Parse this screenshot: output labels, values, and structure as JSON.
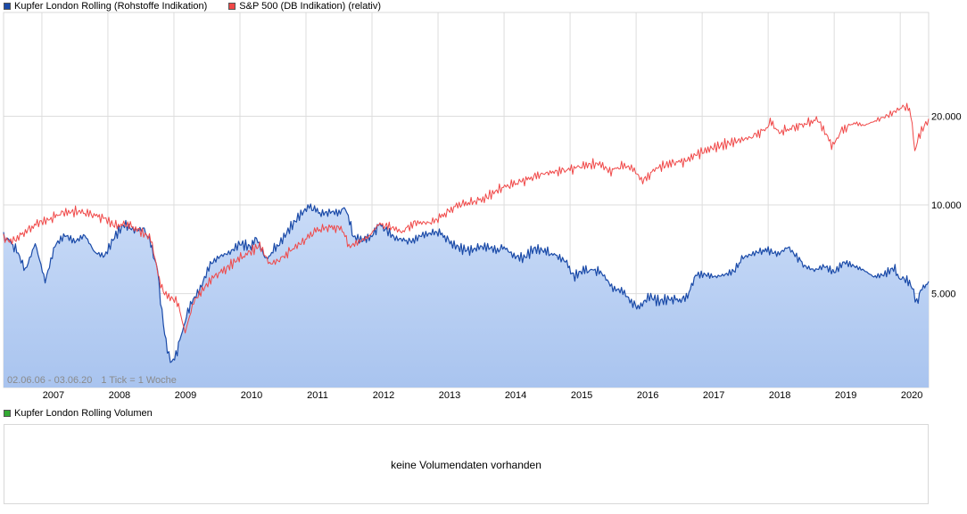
{
  "legend": {
    "series1": "Kupfer London Rolling (Rohstoffe Indikation)",
    "series2": "S&P 500 (DB Indikation) (relativ)"
  },
  "colors": {
    "series1_line": "#1a4aa8",
    "series1_fill_top": "#c9dbf7",
    "series1_fill_bottom": "#a9c4ef",
    "series2_line": "#f04848",
    "grid": "#dddddd",
    "volume_swatch": "#33aa33"
  },
  "range_label": "02.06.06 - 03.06.20",
  "tick_info": "1 Tick = 1 Woche",
  "volume": {
    "legend": "Kupfer London Rolling Volumen",
    "message": "keine Volumendaten vorhanden"
  },
  "chart_data": {
    "type": "line",
    "scale": "log",
    "ylim": [
      2400,
      45000
    ],
    "xlim": [
      2006.42,
      2020.43
    ],
    "y_ticks": [
      {
        "value": 5000,
        "label": "5.000"
      },
      {
        "value": 10000,
        "label": "10.000"
      },
      {
        "value": 20000,
        "label": "20.000"
      }
    ],
    "x_ticks": [
      "2007",
      "2008",
      "2009",
      "2010",
      "2011",
      "2012",
      "2013",
      "2014",
      "2015",
      "2016",
      "2017",
      "2018",
      "2019",
      "2020"
    ],
    "series": [
      {
        "name": "Kupfer London Rolling (Rohstoffe Indikation)",
        "area": true,
        "points": [
          [
            2006.42,
            7800
          ],
          [
            2006.5,
            7600
          ],
          [
            2006.62,
            7000
          ],
          [
            2006.75,
            6000
          ],
          [
            2006.9,
            7400
          ],
          [
            2007.05,
            5500
          ],
          [
            2007.2,
            7300
          ],
          [
            2007.35,
            7900
          ],
          [
            2007.5,
            7500
          ],
          [
            2007.65,
            7900
          ],
          [
            2007.8,
            6900
          ],
          [
            2007.95,
            6700
          ],
          [
            2008.1,
            7800
          ],
          [
            2008.25,
            8600
          ],
          [
            2008.4,
            8200
          ],
          [
            2008.55,
            8300
          ],
          [
            2008.65,
            7400
          ],
          [
            2008.75,
            6000
          ],
          [
            2008.82,
            4300
          ],
          [
            2008.9,
            3200
          ],
          [
            2008.97,
            2900
          ],
          [
            2009.05,
            3200
          ],
          [
            2009.15,
            3900
          ],
          [
            2009.25,
            4600
          ],
          [
            2009.4,
            5200
          ],
          [
            2009.55,
            6300
          ],
          [
            2009.7,
            6700
          ],
          [
            2009.85,
            6900
          ],
          [
            2010.0,
            7400
          ],
          [
            2010.15,
            7200
          ],
          [
            2010.25,
            7700
          ],
          [
            2010.4,
            6500
          ],
          [
            2010.5,
            7000
          ],
          [
            2010.6,
            7400
          ],
          [
            2010.75,
            8300
          ],
          [
            2010.9,
            9200
          ],
          [
            2011.05,
            9900
          ],
          [
            2011.15,
            9600
          ],
          [
            2011.25,
            9300
          ],
          [
            2011.35,
            9500
          ],
          [
            2011.5,
            9400
          ],
          [
            2011.6,
            9800
          ],
          [
            2011.72,
            7800
          ],
          [
            2011.85,
            7600
          ],
          [
            2012.0,
            7800
          ],
          [
            2012.1,
            8600
          ],
          [
            2012.2,
            8300
          ],
          [
            2012.35,
            7700
          ],
          [
            2012.5,
            7600
          ],
          [
            2012.6,
            7500
          ],
          [
            2012.75,
            7900
          ],
          [
            2012.9,
            8000
          ],
          [
            2013.0,
            8100
          ],
          [
            2013.1,
            7800
          ],
          [
            2013.2,
            7400
          ],
          [
            2013.35,
            7100
          ],
          [
            2013.5,
            7000
          ],
          [
            2013.6,
            7200
          ],
          [
            2013.75,
            7200
          ],
          [
            2013.9,
            7000
          ],
          [
            2014.0,
            7200
          ],
          [
            2014.15,
            6700
          ],
          [
            2014.3,
            6600
          ],
          [
            2014.45,
            7100
          ],
          [
            2014.6,
            7000
          ],
          [
            2014.8,
            6700
          ],
          [
            2014.95,
            6400
          ],
          [
            2015.05,
            5700
          ],
          [
            2015.2,
            6000
          ],
          [
            2015.4,
            6000
          ],
          [
            2015.5,
            5800
          ],
          [
            2015.65,
            5200
          ],
          [
            2015.8,
            5100
          ],
          [
            2015.95,
            4600
          ],
          [
            2016.05,
            4500
          ],
          [
            2016.2,
            4900
          ],
          [
            2016.35,
            4700
          ],
          [
            2016.5,
            4800
          ],
          [
            2016.7,
            4750
          ],
          [
            2016.8,
            5000
          ],
          [
            2016.9,
            5800
          ],
          [
            2017.05,
            5800
          ],
          [
            2017.2,
            5700
          ],
          [
            2017.35,
            5800
          ],
          [
            2017.5,
            6000
          ],
          [
            2017.6,
            6600
          ],
          [
            2017.75,
            6800
          ],
          [
            2017.9,
            7000
          ],
          [
            2018.0,
            7000
          ],
          [
            2018.15,
            6800
          ],
          [
            2018.3,
            7200
          ],
          [
            2018.45,
            6600
          ],
          [
            2018.55,
            6200
          ],
          [
            2018.7,
            6000
          ],
          [
            2018.85,
            6200
          ],
          [
            2019.0,
            5900
          ],
          [
            2019.15,
            6400
          ],
          [
            2019.3,
            6200
          ],
          [
            2019.45,
            6000
          ],
          [
            2019.6,
            5700
          ],
          [
            2019.75,
            5800
          ],
          [
            2019.9,
            6100
          ],
          [
            2020.0,
            5600
          ],
          [
            2020.1,
            5600
          ],
          [
            2020.18,
            5200
          ],
          [
            2020.25,
            4700
          ],
          [
            2020.33,
            5200
          ],
          [
            2020.43,
            5500
          ]
        ]
      },
      {
        "name": "S&P 500 (DB Indikation) (relativ)",
        "area": false,
        "points": [
          [
            2006.42,
            7700
          ],
          [
            2006.55,
            7500
          ],
          [
            2006.75,
            8100
          ],
          [
            2006.95,
            8700
          ],
          [
            2007.1,
            8900
          ],
          [
            2007.3,
            9400
          ],
          [
            2007.55,
            9500
          ],
          [
            2007.75,
            9300
          ],
          [
            2007.95,
            9000
          ],
          [
            2008.1,
            8500
          ],
          [
            2008.3,
            8600
          ],
          [
            2008.5,
            8100
          ],
          [
            2008.65,
            7700
          ],
          [
            2008.8,
            5300
          ],
          [
            2008.9,
            4900
          ],
          [
            2009.05,
            4700
          ],
          [
            2009.17,
            3700
          ],
          [
            2009.3,
            4700
          ],
          [
            2009.45,
            5200
          ],
          [
            2009.6,
            5700
          ],
          [
            2009.8,
            6100
          ],
          [
            2009.95,
            6500
          ],
          [
            2010.15,
            6900
          ],
          [
            2010.3,
            7300
          ],
          [
            2010.45,
            6300
          ],
          [
            2010.6,
            6500
          ],
          [
            2010.8,
            7100
          ],
          [
            2010.95,
            7500
          ],
          [
            2011.15,
            8200
          ],
          [
            2011.35,
            8400
          ],
          [
            2011.55,
            8300
          ],
          [
            2011.65,
            7200
          ],
          [
            2011.8,
            7500
          ],
          [
            2011.95,
            7800
          ],
          [
            2012.1,
            8600
          ],
          [
            2012.3,
            8400
          ],
          [
            2012.45,
            8100
          ],
          [
            2012.65,
            8700
          ],
          [
            2012.9,
            8700
          ],
          [
            2013.1,
            9300
          ],
          [
            2013.3,
            10000
          ],
          [
            2013.5,
            10200
          ],
          [
            2013.7,
            10500
          ],
          [
            2013.95,
            11400
          ],
          [
            2014.15,
            11800
          ],
          [
            2014.35,
            12200
          ],
          [
            2014.55,
            12700
          ],
          [
            2014.8,
            13000
          ],
          [
            2015.0,
            13200
          ],
          [
            2015.2,
            13600
          ],
          [
            2015.45,
            13800
          ],
          [
            2015.6,
            13000
          ],
          [
            2015.8,
            13600
          ],
          [
            2015.95,
            13300
          ],
          [
            2016.1,
            12000
          ],
          [
            2016.3,
            13300
          ],
          [
            2016.55,
            13900
          ],
          [
            2016.75,
            14100
          ],
          [
            2016.9,
            14800
          ],
          [
            2017.15,
            15600
          ],
          [
            2017.45,
            16300
          ],
          [
            2017.75,
            17000
          ],
          [
            2017.95,
            18000
          ],
          [
            2018.05,
            19200
          ],
          [
            2018.15,
            17600
          ],
          [
            2018.35,
            18200
          ],
          [
            2018.55,
            18800
          ],
          [
            2018.75,
            19500
          ],
          [
            2018.9,
            17000
          ],
          [
            2018.98,
            15800
          ],
          [
            2019.1,
            17800
          ],
          [
            2019.3,
            19000
          ],
          [
            2019.45,
            18600
          ],
          [
            2019.6,
            19200
          ],
          [
            2019.85,
            20300
          ],
          [
            2020.0,
            21300
          ],
          [
            2020.12,
            21600
          ],
          [
            2020.18,
            19000
          ],
          [
            2020.22,
            15200
          ],
          [
            2020.3,
            17500
          ],
          [
            2020.43,
            19600
          ]
        ]
      }
    ]
  }
}
